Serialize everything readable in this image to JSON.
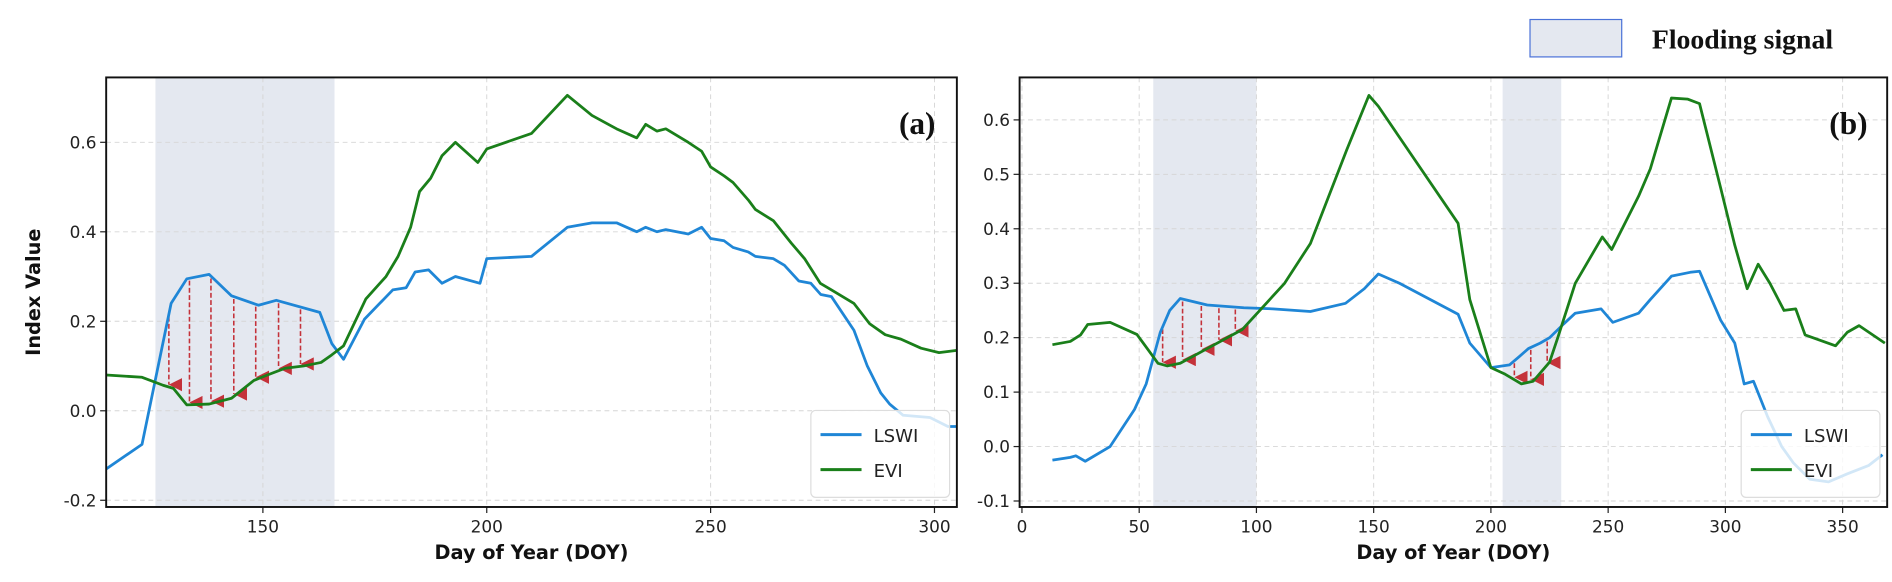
{
  "legend_global": {
    "label": "Flooding signal",
    "color": "#e4e8f0",
    "border": "#4a72d8"
  },
  "colors": {
    "lswi": "#1f86d6",
    "evi": "#1a7f1a",
    "arrow": "#c4323a",
    "shade": "#e4e8f0"
  },
  "chart_data": [
    {
      "type": "line",
      "panel_label": "(a)",
      "xlabel": "Day of Year (DOY)",
      "ylabel": "Index Value",
      "xlim": [
        115,
        305
      ],
      "ylim": [
        -0.215,
        0.745
      ],
      "xticks": [
        "150",
        "200",
        "250",
        "300"
      ],
      "yticks": [
        "-0.2",
        "0.0",
        "0.2",
        "0.4",
        "0.6"
      ],
      "grid": true,
      "legend": {
        "placement": "lower-right",
        "entries": [
          "LSWI",
          "EVI"
        ]
      },
      "flood_periods": [
        [
          126,
          166
        ]
      ],
      "flood_arrows_doy": [
        129,
        133.6,
        138.4,
        143.5,
        148.4,
        153.5,
        158.4
      ],
      "series": [
        {
          "name": "LSWI",
          "x": [
            115,
            123,
            129.5,
            133,
            138,
            143,
            149,
            153,
            162.7,
            165.4,
            168,
            172.7,
            179,
            182,
            184,
            187,
            190,
            193,
            198.5,
            200,
            210,
            218,
            223.5,
            229,
            233.5,
            235.5,
            238,
            240,
            245,
            248,
            250,
            253,
            255,
            258.4,
            260,
            264,
            266.5,
            269.7,
            272.4,
            274.6,
            277,
            282,
            285,
            288,
            290,
            293,
            299,
            303,
            305
          ],
          "y": [
            -0.13,
            -0.075,
            0.24,
            0.295,
            0.305,
            0.257,
            0.236,
            0.247,
            0.22,
            0.15,
            0.115,
            0.205,
            0.27,
            0.275,
            0.31,
            0.315,
            0.285,
            0.3,
            0.285,
            0.34,
            0.345,
            0.41,
            0.42,
            0.42,
            0.4,
            0.41,
            0.4,
            0.405,
            0.395,
            0.41,
            0.385,
            0.38,
            0.365,
            0.355,
            0.345,
            0.34,
            0.325,
            0.29,
            0.285,
            0.26,
            0.255,
            0.18,
            0.1,
            0.04,
            0.015,
            -0.01,
            -0.015,
            -0.035,
            -0.035
          ]
        },
        {
          "name": "EVI",
          "x": [
            115,
            123,
            127.7,
            130,
            133,
            138,
            143,
            148,
            151,
            155,
            159,
            163,
            165.4,
            168,
            173,
            177.5,
            180.2,
            183,
            185,
            187.5,
            190,
            193,
            198,
            200,
            210,
            218,
            223.5,
            229,
            233.5,
            235.5,
            238,
            240,
            245,
            248,
            250,
            253,
            255,
            258.5,
            260,
            264,
            268,
            271,
            274.5,
            277,
            282,
            285.5,
            289,
            292.5,
            297,
            301,
            305
          ],
          "y": [
            0.08,
            0.075,
            0.057,
            0.05,
            0.013,
            0.015,
            0.028,
            0.068,
            0.08,
            0.095,
            0.1,
            0.108,
            0.125,
            0.145,
            0.25,
            0.3,
            0.345,
            0.41,
            0.49,
            0.52,
            0.57,
            0.6,
            0.555,
            0.585,
            0.62,
            0.705,
            0.66,
            0.63,
            0.61,
            0.64,
            0.625,
            0.63,
            0.6,
            0.58,
            0.545,
            0.525,
            0.51,
            0.47,
            0.45,
            0.425,
            0.375,
            0.34,
            0.285,
            0.27,
            0.24,
            0.195,
            0.17,
            0.16,
            0.14,
            0.13,
            0.135
          ]
        }
      ]
    },
    {
      "type": "line",
      "panel_label": "(b)",
      "xlabel": "Day of Year (DOY)",
      "xlim": [
        -1,
        369
      ],
      "ylim": [
        -0.111,
        0.678
      ],
      "xticks": [
        "0",
        "50",
        "100",
        "150",
        "200",
        "250",
        "300",
        "350"
      ],
      "yticks": [
        "-0.1",
        "0.0",
        "0.1",
        "0.2",
        "0.3",
        "0.4",
        "0.5",
        "0.6"
      ],
      "grid": true,
      "legend": {
        "placement": "lower-right",
        "entries": [
          "LSWI",
          "EVI"
        ]
      },
      "flood_periods": [
        [
          56,
          100
        ],
        [
          205,
          230
        ]
      ],
      "flood_arrows_doy": [
        60,
        68.5,
        76.5,
        84,
        91,
        210,
        217,
        224
      ],
      "series": [
        {
          "name": "LSWI",
          "x": [
            13,
            20.6,
            23,
            27,
            37.6,
            48,
            53,
            59,
            63,
            67.5,
            79,
            94.6,
            107,
            123,
            138,
            146,
            152,
            161,
            186,
            191,
            200,
            208,
            212,
            216,
            221,
            225,
            231,
            236,
            247,
            252,
            263,
            268,
            277,
            285,
            289,
            298,
            304,
            308,
            312,
            318,
            324,
            329,
            336,
            344,
            352,
            361,
            367
          ],
          "y": [
            -0.025,
            -0.02,
            -0.017,
            -0.027,
            0.0,
            0.068,
            0.115,
            0.21,
            0.25,
            0.272,
            0.26,
            0.255,
            0.253,
            0.248,
            0.263,
            0.29,
            0.317,
            0.3,
            0.243,
            0.19,
            0.145,
            0.15,
            0.165,
            0.18,
            0.19,
            0.2,
            0.225,
            0.245,
            0.253,
            0.228,
            0.245,
            0.27,
            0.313,
            0.32,
            0.322,
            0.232,
            0.19,
            0.115,
            0.12,
            0.055,
            0.0,
            -0.03,
            -0.06,
            -0.065,
            -0.05,
            -0.035,
            -0.015
          ]
        },
        {
          "name": "EVI",
          "x": [
            13,
            20.6,
            25,
            28,
            37.6,
            49,
            58,
            62,
            67.5,
            79,
            94,
            112,
            123,
            138.5,
            148,
            152,
            186,
            191,
            200,
            206,
            213,
            218,
            225,
            228.5,
            236,
            247.5,
            251.5,
            263,
            268,
            277,
            284,
            289,
            298,
            304,
            309.3,
            314,
            319,
            325,
            330,
            334,
            347,
            352,
            357,
            368
          ],
          "y": [
            0.187,
            0.193,
            0.205,
            0.224,
            0.228,
            0.206,
            0.153,
            0.148,
            0.153,
            0.18,
            0.215,
            0.3,
            0.373,
            0.545,
            0.645,
            0.625,
            0.41,
            0.27,
            0.145,
            0.133,
            0.115,
            0.12,
            0.155,
            0.2,
            0.3,
            0.385,
            0.362,
            0.46,
            0.51,
            0.64,
            0.638,
            0.63,
            0.475,
            0.37,
            0.29,
            0.335,
            0.3,
            0.25,
            0.253,
            0.205,
            0.185,
            0.21,
            0.222,
            0.19
          ]
        }
      ]
    }
  ]
}
